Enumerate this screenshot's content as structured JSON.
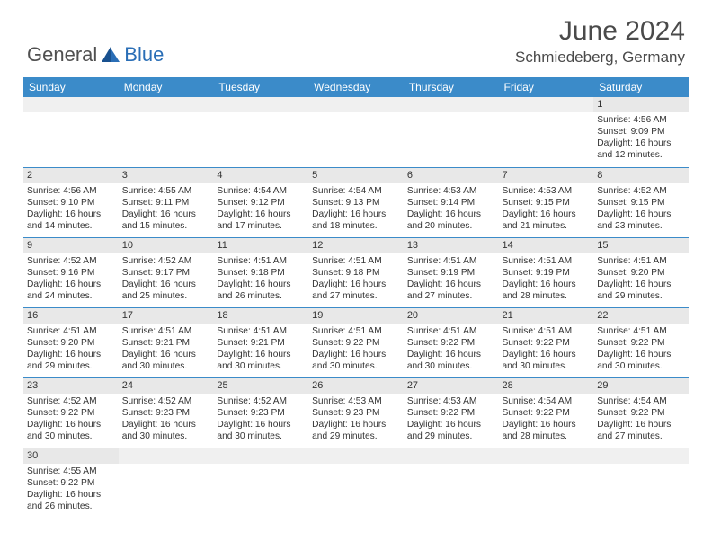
{
  "logo": {
    "text1": "General",
    "text2": "Blue"
  },
  "title": "June 2024",
  "location": "Schmiedeberg, Germany",
  "colors": {
    "header_bg": "#3b8bc9",
    "header_text": "#ffffff",
    "daynum_bg": "#e8e8e8",
    "row_border": "#3b8bc9",
    "body_text": "#333333",
    "logo_blue": "#2a6eb6"
  },
  "columns": [
    "Sunday",
    "Monday",
    "Tuesday",
    "Wednesday",
    "Thursday",
    "Friday",
    "Saturday"
  ],
  "first_weekday_index": 6,
  "days": [
    {
      "n": 1,
      "sunrise": "4:56 AM",
      "sunset": "9:09 PM",
      "daylight": "16 hours and 12 minutes."
    },
    {
      "n": 2,
      "sunrise": "4:56 AM",
      "sunset": "9:10 PM",
      "daylight": "16 hours and 14 minutes."
    },
    {
      "n": 3,
      "sunrise": "4:55 AM",
      "sunset": "9:11 PM",
      "daylight": "16 hours and 15 minutes."
    },
    {
      "n": 4,
      "sunrise": "4:54 AM",
      "sunset": "9:12 PM",
      "daylight": "16 hours and 17 minutes."
    },
    {
      "n": 5,
      "sunrise": "4:54 AM",
      "sunset": "9:13 PM",
      "daylight": "16 hours and 18 minutes."
    },
    {
      "n": 6,
      "sunrise": "4:53 AM",
      "sunset": "9:14 PM",
      "daylight": "16 hours and 20 minutes."
    },
    {
      "n": 7,
      "sunrise": "4:53 AM",
      "sunset": "9:15 PM",
      "daylight": "16 hours and 21 minutes."
    },
    {
      "n": 8,
      "sunrise": "4:52 AM",
      "sunset": "9:15 PM",
      "daylight": "16 hours and 23 minutes."
    },
    {
      "n": 9,
      "sunrise": "4:52 AM",
      "sunset": "9:16 PM",
      "daylight": "16 hours and 24 minutes."
    },
    {
      "n": 10,
      "sunrise": "4:52 AM",
      "sunset": "9:17 PM",
      "daylight": "16 hours and 25 minutes."
    },
    {
      "n": 11,
      "sunrise": "4:51 AM",
      "sunset": "9:18 PM",
      "daylight": "16 hours and 26 minutes."
    },
    {
      "n": 12,
      "sunrise": "4:51 AM",
      "sunset": "9:18 PM",
      "daylight": "16 hours and 27 minutes."
    },
    {
      "n": 13,
      "sunrise": "4:51 AM",
      "sunset": "9:19 PM",
      "daylight": "16 hours and 27 minutes."
    },
    {
      "n": 14,
      "sunrise": "4:51 AM",
      "sunset": "9:19 PM",
      "daylight": "16 hours and 28 minutes."
    },
    {
      "n": 15,
      "sunrise": "4:51 AM",
      "sunset": "9:20 PM",
      "daylight": "16 hours and 29 minutes."
    },
    {
      "n": 16,
      "sunrise": "4:51 AM",
      "sunset": "9:20 PM",
      "daylight": "16 hours and 29 minutes."
    },
    {
      "n": 17,
      "sunrise": "4:51 AM",
      "sunset": "9:21 PM",
      "daylight": "16 hours and 30 minutes."
    },
    {
      "n": 18,
      "sunrise": "4:51 AM",
      "sunset": "9:21 PM",
      "daylight": "16 hours and 30 minutes."
    },
    {
      "n": 19,
      "sunrise": "4:51 AM",
      "sunset": "9:22 PM",
      "daylight": "16 hours and 30 minutes."
    },
    {
      "n": 20,
      "sunrise": "4:51 AM",
      "sunset": "9:22 PM",
      "daylight": "16 hours and 30 minutes."
    },
    {
      "n": 21,
      "sunrise": "4:51 AM",
      "sunset": "9:22 PM",
      "daylight": "16 hours and 30 minutes."
    },
    {
      "n": 22,
      "sunrise": "4:51 AM",
      "sunset": "9:22 PM",
      "daylight": "16 hours and 30 minutes."
    },
    {
      "n": 23,
      "sunrise": "4:52 AM",
      "sunset": "9:22 PM",
      "daylight": "16 hours and 30 minutes."
    },
    {
      "n": 24,
      "sunrise": "4:52 AM",
      "sunset": "9:23 PM",
      "daylight": "16 hours and 30 minutes."
    },
    {
      "n": 25,
      "sunrise": "4:52 AM",
      "sunset": "9:23 PM",
      "daylight": "16 hours and 30 minutes."
    },
    {
      "n": 26,
      "sunrise": "4:53 AM",
      "sunset": "9:23 PM",
      "daylight": "16 hours and 29 minutes."
    },
    {
      "n": 27,
      "sunrise": "4:53 AM",
      "sunset": "9:22 PM",
      "daylight": "16 hours and 29 minutes."
    },
    {
      "n": 28,
      "sunrise": "4:54 AM",
      "sunset": "9:22 PM",
      "daylight": "16 hours and 28 minutes."
    },
    {
      "n": 29,
      "sunrise": "4:54 AM",
      "sunset": "9:22 PM",
      "daylight": "16 hours and 27 minutes."
    },
    {
      "n": 30,
      "sunrise": "4:55 AM",
      "sunset": "9:22 PM",
      "daylight": "16 hours and 26 minutes."
    }
  ],
  "labels": {
    "sunrise": "Sunrise:",
    "sunset": "Sunset:",
    "daylight": "Daylight:"
  }
}
